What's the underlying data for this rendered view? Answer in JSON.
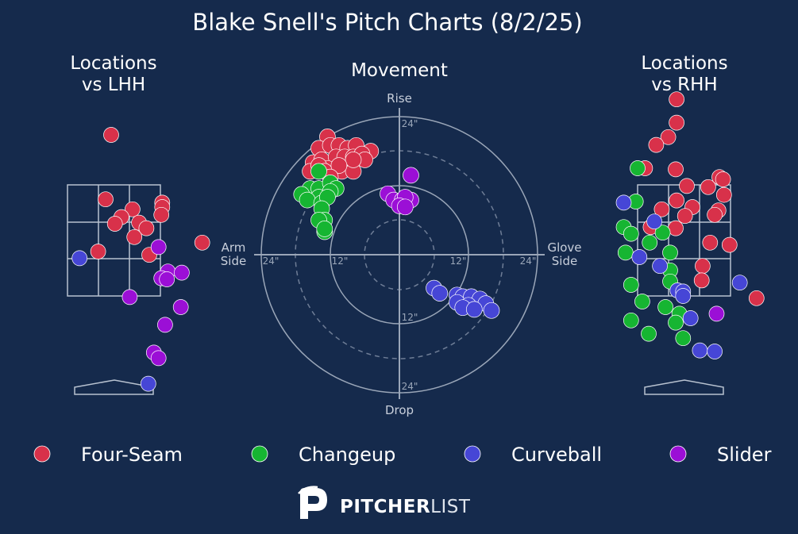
{
  "title": "Blake Snell's Pitch Charts (8/2/25)",
  "panels": {
    "lhh_title": [
      "Locations",
      "vs LHH"
    ],
    "movement_title": "Movement",
    "rhh_title": [
      "Locations",
      "vs RHH"
    ]
  },
  "movement_axes": {
    "top": "Rise",
    "bottom": "Drop",
    "left": [
      "Arm",
      "Side"
    ],
    "right": [
      "Glove",
      "Side"
    ],
    "ring_labels": [
      "24\"",
      "12\"",
      "12\"",
      "24\"",
      "24\"",
      "12\"",
      "24\""
    ]
  },
  "colors": {
    "Four-Seam": "#d8314a",
    "Changeup": "#16b532",
    "Curveball": "#4646d6",
    "Slider": "#9b0fd6",
    "background": "#152a4c"
  },
  "legend": [
    {
      "label": "Four-Seam",
      "color": "#d8314a"
    },
    {
      "label": "Changeup",
      "color": "#16b532"
    },
    {
      "label": "Curveball",
      "color": "#4646d6"
    },
    {
      "label": "Slider",
      "color": "#9b0fd6"
    }
  ],
  "logo": {
    "part1": "PITCHER",
    "part2": "LIST"
  },
  "chart_data": [
    {
      "type": "scatter",
      "name": "Locations vs LHH",
      "units": "zone widths (x), zone heights (y); strike zone = 0..1",
      "pitches": [
        {
          "pitch": "Four-Seam",
          "x": 0.47,
          "y": 1.45
        },
        {
          "pitch": "Four-Seam",
          "x": 0.41,
          "y": 0.87
        },
        {
          "pitch": "Four-Seam",
          "x": 0.7,
          "y": 0.78
        },
        {
          "pitch": "Four-Seam",
          "x": 1.02,
          "y": 0.84
        },
        {
          "pitch": "Four-Seam",
          "x": 1.02,
          "y": 0.8
        },
        {
          "pitch": "Four-Seam",
          "x": 1.01,
          "y": 0.73
        },
        {
          "pitch": "Four-Seam",
          "x": 0.58,
          "y": 0.71
        },
        {
          "pitch": "Four-Seam",
          "x": 0.51,
          "y": 0.65
        },
        {
          "pitch": "Four-Seam",
          "x": 0.77,
          "y": 0.66
        },
        {
          "pitch": "Four-Seam",
          "x": 0.85,
          "y": 0.61
        },
        {
          "pitch": "Four-Seam",
          "x": 0.72,
          "y": 0.53
        },
        {
          "pitch": "Four-Seam",
          "x": 0.33,
          "y": 0.4
        },
        {
          "pitch": "Four-Seam",
          "x": 0.88,
          "y": 0.37
        },
        {
          "pitch": "Four-Seam",
          "x": 1.45,
          "y": 0.48
        },
        {
          "pitch": "Slider",
          "x": 0.98,
          "y": 0.44
        },
        {
          "pitch": "Slider",
          "x": 1.08,
          "y": 0.22
        },
        {
          "pitch": "Slider",
          "x": 1.23,
          "y": 0.21
        },
        {
          "pitch": "Slider",
          "x": 1.01,
          "y": 0.16
        },
        {
          "pitch": "Slider",
          "x": 1.07,
          "y": 0.15
        },
        {
          "pitch": "Slider",
          "x": 0.67,
          "y": -0.01
        },
        {
          "pitch": "Slider",
          "x": 1.22,
          "y": -0.1
        },
        {
          "pitch": "Slider",
          "x": 1.05,
          "y": -0.26
        },
        {
          "pitch": "Slider",
          "x": 0.93,
          "y": -0.51
        },
        {
          "pitch": "Slider",
          "x": 0.98,
          "y": -0.56
        },
        {
          "pitch": "Curveball",
          "x": 0.13,
          "y": 0.34
        },
        {
          "pitch": "Curveball",
          "x": 0.87,
          "y": -0.79
        }
      ]
    },
    {
      "type": "scatter",
      "name": "Movement",
      "units": "inches (x: negative = arm side, positive = glove side; y: positive = rise)",
      "pitches": [
        {
          "pitch": "Four-Seam",
          "x": -12.5,
          "y": 20.5
        },
        {
          "pitch": "Four-Seam",
          "x": -14.0,
          "y": 18.5
        },
        {
          "pitch": "Four-Seam",
          "x": -12.0,
          "y": 19.0
        },
        {
          "pitch": "Four-Seam",
          "x": -10.5,
          "y": 19.0
        },
        {
          "pitch": "Four-Seam",
          "x": -9.0,
          "y": 18.5
        },
        {
          "pitch": "Four-Seam",
          "x": -7.5,
          "y": 19.0
        },
        {
          "pitch": "Four-Seam",
          "x": -5.0,
          "y": 18.0
        },
        {
          "pitch": "Four-Seam",
          "x": -15.0,
          "y": 16.0
        },
        {
          "pitch": "Four-Seam",
          "x": -13.5,
          "y": 16.5
        },
        {
          "pitch": "Four-Seam",
          "x": -11.0,
          "y": 17.0
        },
        {
          "pitch": "Four-Seam",
          "x": -9.5,
          "y": 17.0
        },
        {
          "pitch": "Four-Seam",
          "x": -8.0,
          "y": 17.0
        },
        {
          "pitch": "Four-Seam",
          "x": -6.5,
          "y": 17.5
        },
        {
          "pitch": "Four-Seam",
          "x": -6.0,
          "y": 16.5
        },
        {
          "pitch": "Four-Seam",
          "x": -15.5,
          "y": 14.5
        },
        {
          "pitch": "Four-Seam",
          "x": -12.5,
          "y": 15.0
        },
        {
          "pitch": "Four-Seam",
          "x": -10.0,
          "y": 14.5
        },
        {
          "pitch": "Four-Seam",
          "x": -8.0,
          "y": 14.5
        },
        {
          "pitch": "Four-Seam",
          "x": -8.0,
          "y": 16.5
        },
        {
          "pitch": "Four-Seam",
          "x": -14.0,
          "y": 15.5
        },
        {
          "pitch": "Four-Seam",
          "x": -13.0,
          "y": 14.5
        },
        {
          "pitch": "Four-Seam",
          "x": -10.5,
          "y": 15.5
        },
        {
          "pitch": "Four-Seam",
          "x": -12.0,
          "y": 13.5
        },
        {
          "pitch": "Changeup",
          "x": -14.0,
          "y": 14.5
        },
        {
          "pitch": "Changeup",
          "x": -15.5,
          "y": 11.5
        },
        {
          "pitch": "Changeup",
          "x": -17.0,
          "y": 10.5
        },
        {
          "pitch": "Changeup",
          "x": -14.0,
          "y": 11.5
        },
        {
          "pitch": "Changeup",
          "x": -12.0,
          "y": 12.5
        },
        {
          "pitch": "Changeup",
          "x": -11.0,
          "y": 11.5
        },
        {
          "pitch": "Changeup",
          "x": -14.0,
          "y": 10.0
        },
        {
          "pitch": "Changeup",
          "x": -12.0,
          "y": 11.0
        },
        {
          "pitch": "Changeup",
          "x": -16.0,
          "y": 9.5
        },
        {
          "pitch": "Changeup",
          "x": -13.5,
          "y": 9.0
        },
        {
          "pitch": "Changeup",
          "x": -12.5,
          "y": 10.0
        },
        {
          "pitch": "Changeup",
          "x": -13.5,
          "y": 8.0
        },
        {
          "pitch": "Changeup",
          "x": -13.0,
          "y": 6.0
        },
        {
          "pitch": "Changeup",
          "x": -14.0,
          "y": 6.0
        },
        {
          "pitch": "Changeup",
          "x": -13.0,
          "y": 4.0
        },
        {
          "pitch": "Changeup",
          "x": -13.0,
          "y": 4.5
        },
        {
          "pitch": "Slider",
          "x": 2.0,
          "y": 13.8
        },
        {
          "pitch": "Slider",
          "x": -2.0,
          "y": 10.6
        },
        {
          "pitch": "Slider",
          "x": -1.0,
          "y": 9.5
        },
        {
          "pitch": "Slider",
          "x": 0.5,
          "y": 9.5
        },
        {
          "pitch": "Slider",
          "x": 2.0,
          "y": 9.5
        },
        {
          "pitch": "Slider",
          "x": 1.0,
          "y": 10.0
        },
        {
          "pitch": "Slider",
          "x": 0.0,
          "y": 8.5
        },
        {
          "pitch": "Slider",
          "x": 1.0,
          "y": 8.3
        },
        {
          "pitch": "Curveball",
          "x": 6.0,
          "y": -5.8
        },
        {
          "pitch": "Curveball",
          "x": 7.0,
          "y": -6.7
        },
        {
          "pitch": "Curveball",
          "x": 10.0,
          "y": -7.0
        },
        {
          "pitch": "Curveball",
          "x": 11.0,
          "y": -7.3
        },
        {
          "pitch": "Curveball",
          "x": 12.5,
          "y": -7.3
        },
        {
          "pitch": "Curveball",
          "x": 14.0,
          "y": -7.7
        },
        {
          "pitch": "Curveball",
          "x": 10.0,
          "y": -8.3
        },
        {
          "pitch": "Curveball",
          "x": 12.0,
          "y": -8.8
        },
        {
          "pitch": "Curveball",
          "x": 15.0,
          "y": -8.5
        },
        {
          "pitch": "Curveball",
          "x": 11.0,
          "y": -9.2
        },
        {
          "pitch": "Curveball",
          "x": 13.0,
          "y": -9.5
        },
        {
          "pitch": "Curveball",
          "x": 16.0,
          "y": -9.7
        }
      ]
    },
    {
      "type": "scatter",
      "name": "Locations vs RHH",
      "units": "zone widths (x), zone heights (y); strike zone = 0..1",
      "pitches": [
        {
          "pitch": "Four-Seam",
          "x": 0.42,
          "y": 1.77
        },
        {
          "pitch": "Four-Seam",
          "x": 0.42,
          "y": 1.56
        },
        {
          "pitch": "Four-Seam",
          "x": 0.33,
          "y": 1.43
        },
        {
          "pitch": "Four-Seam",
          "x": 0.2,
          "y": 1.36
        },
        {
          "pitch": "Four-Seam",
          "x": 0.08,
          "y": 1.15
        },
        {
          "pitch": "Four-Seam",
          "x": 0.41,
          "y": 1.14
        },
        {
          "pitch": "Four-Seam",
          "x": 0.53,
          "y": 0.99
        },
        {
          "pitch": "Four-Seam",
          "x": 0.76,
          "y": 0.98
        },
        {
          "pitch": "Four-Seam",
          "x": 0.88,
          "y": 1.07
        },
        {
          "pitch": "Four-Seam",
          "x": 0.92,
          "y": 1.05
        },
        {
          "pitch": "Four-Seam",
          "x": 0.93,
          "y": 0.91
        },
        {
          "pitch": "Four-Seam",
          "x": 0.42,
          "y": 0.86
        },
        {
          "pitch": "Four-Seam",
          "x": 0.59,
          "y": 0.8
        },
        {
          "pitch": "Four-Seam",
          "x": 0.26,
          "y": 0.78
        },
        {
          "pitch": "Four-Seam",
          "x": 0.87,
          "y": 0.77
        },
        {
          "pitch": "Four-Seam",
          "x": 0.83,
          "y": 0.73
        },
        {
          "pitch": "Four-Seam",
          "x": 0.51,
          "y": 0.72
        },
        {
          "pitch": "Four-Seam",
          "x": 0.14,
          "y": 0.62
        },
        {
          "pitch": "Four-Seam",
          "x": 0.41,
          "y": 0.61
        },
        {
          "pitch": "Four-Seam",
          "x": 0.78,
          "y": 0.48
        },
        {
          "pitch": "Four-Seam",
          "x": 0.99,
          "y": 0.46
        },
        {
          "pitch": "Four-Seam",
          "x": 0.7,
          "y": 0.27
        },
        {
          "pitch": "Four-Seam",
          "x": 0.69,
          "y": 0.14
        },
        {
          "pitch": "Four-Seam",
          "x": 1.28,
          "y": -0.02
        },
        {
          "pitch": "Changeup",
          "x": 0.0,
          "y": 1.15
        },
        {
          "pitch": "Changeup",
          "x": -0.02,
          "y": 0.85
        },
        {
          "pitch": "Changeup",
          "x": -0.15,
          "y": 0.62
        },
        {
          "pitch": "Changeup",
          "x": -0.07,
          "y": 0.56
        },
        {
          "pitch": "Changeup",
          "x": 0.27,
          "y": 0.57
        },
        {
          "pitch": "Changeup",
          "x": 0.13,
          "y": 0.48
        },
        {
          "pitch": "Changeup",
          "x": -0.13,
          "y": 0.39
        },
        {
          "pitch": "Changeup",
          "x": 0.35,
          "y": 0.39
        },
        {
          "pitch": "Changeup",
          "x": 0.35,
          "y": 0.23
        },
        {
          "pitch": "Changeup",
          "x": 0.35,
          "y": 0.13
        },
        {
          "pitch": "Changeup",
          "x": -0.07,
          "y": 0.1
        },
        {
          "pitch": "Changeup",
          "x": 0.05,
          "y": -0.05
        },
        {
          "pitch": "Changeup",
          "x": 0.3,
          "y": -0.1
        },
        {
          "pitch": "Changeup",
          "x": 0.45,
          "y": -0.16
        },
        {
          "pitch": "Changeup",
          "x": -0.07,
          "y": -0.22
        },
        {
          "pitch": "Changeup",
          "x": 0.41,
          "y": -0.24
        },
        {
          "pitch": "Changeup",
          "x": 0.12,
          "y": -0.34
        },
        {
          "pitch": "Changeup",
          "x": 0.49,
          "y": -0.38
        },
        {
          "pitch": "Curveball",
          "x": -0.15,
          "y": 0.84
        },
        {
          "pitch": "Curveball",
          "x": 0.18,
          "y": 0.67
        },
        {
          "pitch": "Curveball",
          "x": 0.02,
          "y": 0.35
        },
        {
          "pitch": "Curveball",
          "x": 0.24,
          "y": 0.27
        },
        {
          "pitch": "Curveball",
          "x": 0.43,
          "y": 0.05
        },
        {
          "pitch": "Curveball",
          "x": 0.49,
          "y": 0.04
        },
        {
          "pitch": "Curveball",
          "x": 0.49,
          "y": 0.0
        },
        {
          "pitch": "Curveball",
          "x": 1.1,
          "y": 0.12
        },
        {
          "pitch": "Curveball",
          "x": 0.57,
          "y": -0.2
        },
        {
          "pitch": "Curveball",
          "x": 0.67,
          "y": -0.49
        },
        {
          "pitch": "Curveball",
          "x": 0.83,
          "y": -0.5
        },
        {
          "pitch": "Slider",
          "x": 0.85,
          "y": -0.16
        }
      ]
    }
  ]
}
